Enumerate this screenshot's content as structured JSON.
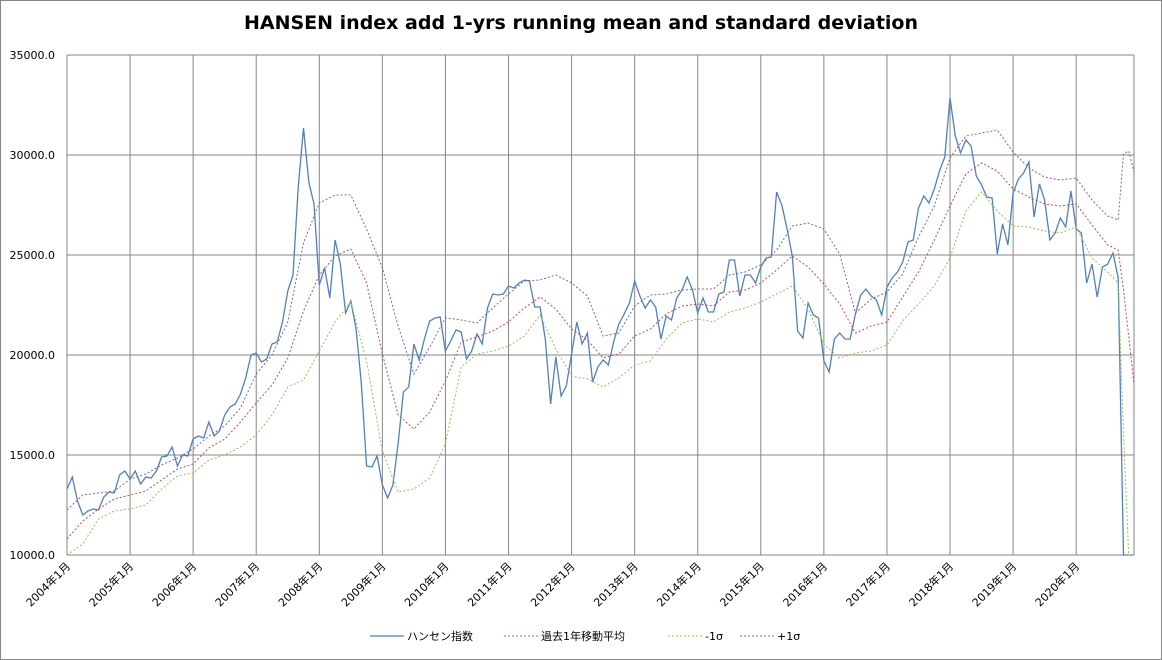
{
  "chart_data": {
    "type": "line",
    "title": "HANSEN index add 1-yrs running mean and standard deviation",
    "xlabel": "",
    "ylabel": "",
    "ylim": [
      10000,
      35000
    ],
    "y_ticks": [
      "10000.0",
      "15000.0",
      "20000.0",
      "25000.0",
      "30000.0",
      "35000.0"
    ],
    "x_ticks": [
      "2004年1月",
      "2005年1月",
      "2006年1月",
      "2007年1月",
      "2008年1月",
      "2009年1月",
      "2010年1月",
      "2011年1月",
      "2012年1月",
      "2013年1月",
      "2014年1月",
      "2015年1月",
      "2016年1月",
      "2017年1月",
      "2018年1月",
      "2019年1月",
      "2020年1月"
    ],
    "x_range": [
      "2004-01",
      "2020-12"
    ],
    "grid": true,
    "legend_position": "bottom",
    "colors": {
      "index": "#4F81BD",
      "mean": "#C0504D",
      "minus_sigma": "#9BBB59",
      "plus_sigma": "#8064A2"
    },
    "index_monthly_by_year": {
      "2004": [
        13300,
        13900,
        12700,
        12000,
        12200,
        12300,
        12250,
        12900,
        13150,
        13100,
        14000,
        14200
      ],
      "2005": [
        13800,
        14200,
        13550,
        13900,
        13850,
        14200,
        14900,
        14950,
        15400,
        14450,
        15000,
        14950
      ],
      "2006": [
        15800,
        15950,
        15850,
        16650,
        15950,
        16200,
        17000,
        17400,
        17550,
        18050,
        18850,
        20000
      ],
      "2007": [
        20100,
        19650,
        19800,
        20550,
        20650,
        21650,
        23200,
        24000,
        28450,
        31350,
        28650,
        27550
      ],
      "2008": [
        23500,
        24350,
        22850,
        25750,
        24550,
        22100,
        22700,
        21300,
        18600,
        14450,
        14400,
        14950
      ],
      "2009": [
        13500,
        12850,
        13500,
        15550,
        18150,
        18400,
        20550,
        19750,
        20800,
        21700,
        21850,
        21900
      ],
      "2010": [
        20200,
        20700,
        21250,
        21150,
        19800,
        20200,
        21050,
        20550,
        22350,
        23050,
        23000,
        23050
      ],
      "2011": [
        23450,
        23350,
        23600,
        23750,
        23700,
        22400,
        22400,
        20800,
        17550,
        19900,
        17950,
        18450
      ],
      "2012": [
        20050,
        21650,
        20550,
        21100,
        18650,
        19400,
        19750,
        19500,
        20650,
        21550,
        22050,
        22600
      ],
      "2013": [
        23700,
        22950,
        22350,
        22750,
        22400,
        20800,
        21950,
        21750,
        22850,
        23250,
        23900,
        23250
      ],
      "2014": [
        22100,
        22850,
        22150,
        22150,
        23050,
        23150,
        24750,
        24750,
        22950,
        24000,
        24000,
        23600
      ],
      "2015": [
        24400,
        24850,
        24900,
        28150,
        27500,
        26300,
        24950,
        21200,
        20850,
        22600,
        22000,
        21850
      ],
      "2016": [
        19700,
        19150,
        20800,
        21100,
        20800,
        20800,
        22050,
        23000,
        23300,
        22950,
        22750,
        22000
      ],
      "2017": [
        23400,
        23850,
        24150,
        24650,
        25650,
        25750,
        27350,
        27950,
        27600,
        28300,
        29200,
        29900
      ],
      "2018": [
        32850,
        30950,
        30100,
        30750,
        30450,
        28950,
        28500,
        27900,
        27850,
        25050,
        26550,
        25500
      ],
      "2019": [
        28100,
        28800,
        29100,
        29650,
        26900,
        28550,
        27750,
        25750,
        26100,
        26850,
        26400,
        28200
      ],
      "2020": [
        26300,
        26100,
        23600,
        24550,
        22900,
        24400,
        24550,
        25100,
        23850,
        0,
        0,
        0
      ]
    },
    "derived_x": [
      "2004-01",
      "2004-04",
      "2004-07",
      "2004-10",
      "2005-01",
      "2005-04",
      "2005-07",
      "2005-10",
      "2006-01",
      "2006-04",
      "2006-07",
      "2006-10",
      "2007-01",
      "2007-04",
      "2007-07",
      "2007-10",
      "2008-01",
      "2008-04",
      "2008-07",
      "2008-10",
      "2009-01",
      "2009-04",
      "2009-07",
      "2009-10",
      "2010-01",
      "2010-04",
      "2010-07",
      "2010-10",
      "2011-01",
      "2011-04",
      "2011-07",
      "2011-10",
      "2012-01",
      "2012-04",
      "2012-07",
      "2012-10",
      "2013-01",
      "2013-04",
      "2013-07",
      "2013-10",
      "2014-01",
      "2014-04",
      "2014-07",
      "2014-10",
      "2015-01",
      "2015-04",
      "2015-07",
      "2015-10",
      "2016-01",
      "2016-04",
      "2016-07",
      "2016-10",
      "2017-01",
      "2017-04",
      "2017-07",
      "2017-10",
      "2018-01",
      "2018-04",
      "2018-07",
      "2018-10",
      "2019-01",
      "2019-04",
      "2019-07",
      "2019-10",
      "2020-01",
      "2020-04",
      "2020-07",
      "2020-09",
      "2020-10",
      "2020-11",
      "2020-12"
    ],
    "series": [
      {
        "key": "index",
        "name": "ハンセン指数",
        "dashed": false
      },
      {
        "key": "mean",
        "name": "過去1年移動平均",
        "dashed": true,
        "values": [
          10800,
          11700,
          12300,
          12800,
          13000,
          13200,
          13750,
          14300,
          14550,
          15350,
          15800,
          16650,
          17600,
          18500,
          19850,
          22200,
          24000,
          24950,
          25300,
          23600,
          20050,
          17000,
          16300,
          17150,
          18700,
          20650,
          20900,
          21200,
          21650,
          22350,
          22900,
          22300,
          21300,
          20750,
          19850,
          20050,
          20950,
          21300,
          22050,
          22450,
          22550,
          22450,
          23150,
          23250,
          23600,
          24250,
          24950,
          24400,
          23550,
          22550,
          21100,
          21450,
          21650,
          22900,
          24150,
          25750,
          27450,
          29050,
          29600,
          29200,
          28300,
          27900,
          27550,
          27450,
          27550,
          26500,
          25500,
          25250,
          23250,
          20950,
          18550
        ]
      },
      {
        "key": "minus_sigma",
        "name": "-1σ",
        "dashed": true,
        "values": [
          9400,
          10550,
          11800,
          12200,
          12300,
          12500,
          13300,
          13950,
          14100,
          14750,
          15000,
          15400,
          16000,
          17000,
          18400,
          18750,
          20200,
          21650,
          22650,
          19700,
          15200,
          13150,
          13300,
          13850,
          15550,
          19400,
          20050,
          20200,
          20450,
          20950,
          22000,
          20300,
          18950,
          18800,
          18400,
          18850,
          19500,
          19700,
          20800,
          21600,
          21800,
          21650,
          22150,
          22350,
          22650,
          23050,
          23450,
          22300,
          20550,
          19850,
          20100,
          20200,
          20500,
          21700,
          22550,
          23450,
          24850,
          27200,
          28150,
          27200,
          26450,
          26400,
          26200,
          26100,
          26400,
          24850,
          24150,
          23600,
          16100,
          9900,
          7700
        ]
      },
      {
        "key": "plus_sigma",
        "name": "+1σ",
        "dashed": true,
        "values": [
          12250,
          13000,
          13100,
          13200,
          13800,
          14050,
          14500,
          14850,
          15300,
          15950,
          16450,
          17350,
          19050,
          20000,
          21650,
          25600,
          27600,
          28000,
          28000,
          26300,
          24350,
          21450,
          19050,
          20400,
          21850,
          21750,
          21600,
          22350,
          23050,
          23700,
          23750,
          24000,
          23600,
          22950,
          20950,
          21100,
          22450,
          23000,
          23050,
          23250,
          23300,
          23300,
          24000,
          24150,
          24500,
          25250,
          26450,
          26600,
          26300,
          25050,
          22100,
          22800,
          23150,
          24050,
          25900,
          27450,
          29850,
          30950,
          31100,
          31250,
          30150,
          29350,
          28900,
          28750,
          28850,
          27750,
          26950,
          26750,
          30050,
          30200,
          29150
        ]
      }
    ]
  }
}
